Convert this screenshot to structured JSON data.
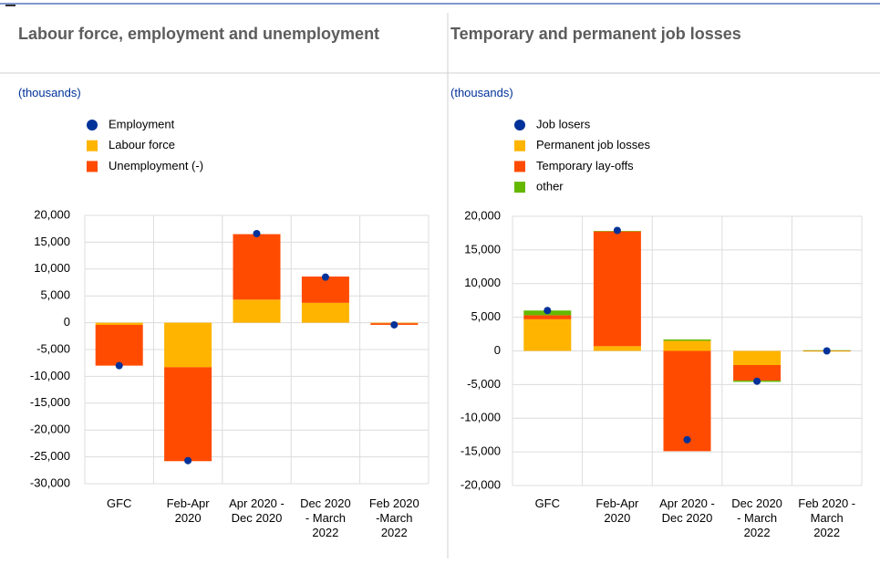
{
  "chart_data": [
    {
      "type": "bar",
      "stacked": true,
      "title": "Labour force, employment and unemployment",
      "subtitle": "(thousands)",
      "categories": [
        "GFC",
        "Feb-Apr\n2020",
        "Apr 2020 -\nDec 2020",
        "Dec 2020\n- March\n2022",
        "Feb 2020\n-March\n2022"
      ],
      "series": [
        {
          "name": "Employment",
          "type": "scatter",
          "color": "#003299",
          "values": [
            -8000,
            -25700,
            16600,
            8500,
            -400
          ]
        },
        {
          "name": "Labour force",
          "color": "#ffb400",
          "values": [
            -400,
            -8300,
            4300,
            3700,
            -100
          ]
        },
        {
          "name": "Unemployment (-)",
          "color": "#ff4b00",
          "values": [
            -7600,
            -17500,
            12200,
            4900,
            -300
          ]
        }
      ],
      "ylim": [
        -30000,
        20000
      ],
      "yticks": [
        {
          "value": -30000,
          "label": "-30,000"
        },
        {
          "value": -25000,
          "label": "-25,000"
        },
        {
          "value": -20000,
          "label": "-20,000"
        },
        {
          "value": -15000,
          "label": "-15,000"
        },
        {
          "value": -10000,
          "label": "-10,000"
        },
        {
          "value": -5000,
          "label": "-5,000"
        },
        0,
        {
          "value": 5000,
          "label": "5,000"
        },
        {
          "value": 10000,
          "label": "10,000"
        },
        {
          "value": 15000,
          "label": "15,000"
        },
        {
          "value": 20000,
          "label": "20,000"
        }
      ],
      "grid": true
    },
    {
      "type": "bar",
      "stacked": true,
      "title": "Temporary and permanent job losses",
      "subtitle": "(thousands)",
      "categories": [
        "GFC",
        "Feb-Apr\n2020",
        "Apr 2020 -\nDec 2020",
        "Dec 2020\n- March\n2022",
        "Feb 2020 -\nMarch\n2022"
      ],
      "series": [
        {
          "name": "Job losers",
          "type": "scatter",
          "color": "#003299",
          "values": [
            6000,
            17900,
            -13200,
            -4500,
            0
          ]
        },
        {
          "name": "Permanent job losses",
          "color": "#ffb400",
          "values": [
            4700,
            700,
            1500,
            -2100,
            -100
          ]
        },
        {
          "name": "Temporary lay-offs",
          "color": "#ff4b00",
          "values": [
            600,
            17100,
            -14900,
            -2300,
            50
          ]
        },
        {
          "name": "other",
          "color": "#65b800",
          "values": [
            700,
            0,
            200,
            -200,
            50
          ]
        }
      ],
      "ylim": [
        -20000,
        20000
      ],
      "yticks": [
        {
          "value": -20000,
          "label": "-20,000"
        },
        {
          "value": -15000,
          "label": "-15,000"
        },
        {
          "value": -10000,
          "label": "-10,000"
        },
        {
          "value": -5000,
          "label": "-5,000"
        },
        0,
        {
          "value": 5000,
          "label": "5,000"
        },
        {
          "value": 10000,
          "label": "10,000"
        },
        {
          "value": 15000,
          "label": "15,000"
        },
        {
          "value": 20000,
          "label": "20,000"
        }
      ],
      "grid": true
    }
  ]
}
